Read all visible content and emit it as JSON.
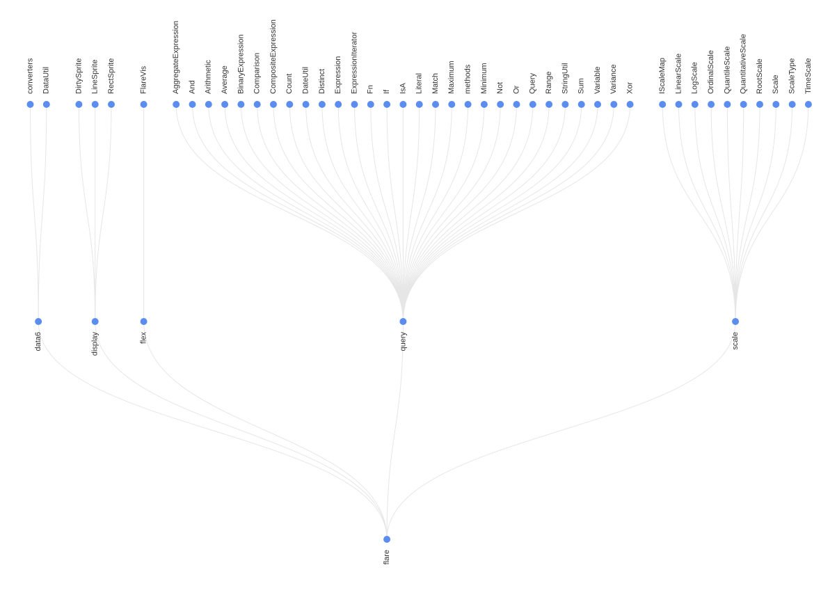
{
  "tree": {
    "root": "flare",
    "groups": [
      {
        "name": "data6",
        "leaves": [
          "converters",
          "DataUtil"
        ]
      },
      {
        "name": "display",
        "leaves": [
          "DirtySprite",
          "LineSprite",
          "RectSprite"
        ]
      },
      {
        "name": "flex",
        "leaves": [
          "FlareVis"
        ]
      },
      {
        "name": "query",
        "leaves": [
          "AggregateExpression",
          "And",
          "Arithmetic",
          "Average",
          "BinaryExpression",
          "Comparison",
          "CompositeExpression",
          "Count",
          "DateUtil",
          "Distinct",
          "Expression",
          "ExpressionIterator",
          "Fn",
          "If",
          "IsA",
          "Literal",
          "Match",
          "Maximum",
          "methods",
          "Minimum",
          "Not",
          "Or",
          "Query",
          "Range",
          "StringUtil",
          "Sum",
          "Variable",
          "Variance",
          "Xor"
        ]
      },
      {
        "name": "scale",
        "leaves": [
          "IScaleMap",
          "LinearScale",
          "LogScale",
          "OrdinalScale",
          "QuantileScale",
          "QuantitativeScale",
          "RootScale",
          "Scale",
          "ScaleType",
          "TimeScale"
        ]
      }
    ]
  },
  "colors": {
    "node": "#5b8def",
    "link": "#e6e6e6",
    "label": "#333333"
  }
}
